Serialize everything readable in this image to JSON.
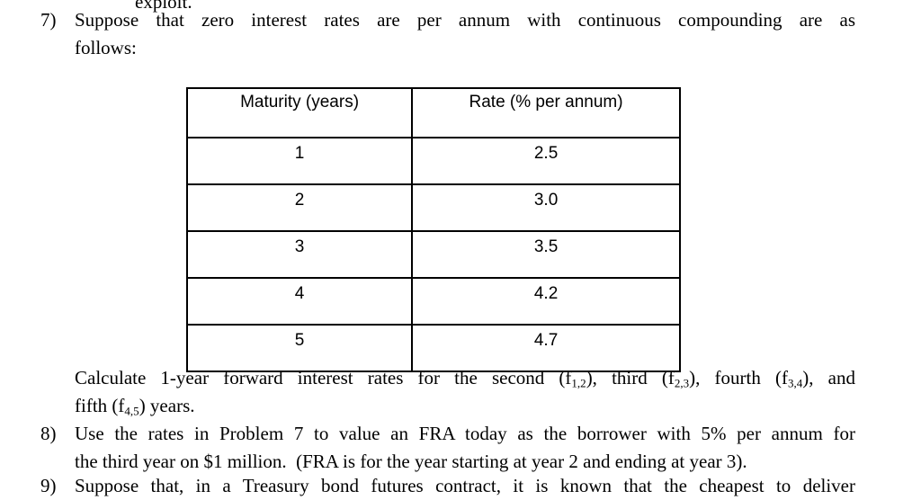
{
  "page": {
    "background": "#ffffff",
    "text_color": "#000000"
  },
  "top_clipped_line": {
    "text": "exploit."
  },
  "problem7": {
    "number": "7)",
    "line1": "Suppose that zero interest rates are per annum with continuous compounding are as",
    "line2": "follows:"
  },
  "rates_table": {
    "headers": [
      "Maturity (years)",
      "Rate (% per annum)"
    ],
    "rows": [
      [
        "1",
        "2.5"
      ],
      [
        "2",
        "3.0"
      ],
      [
        "3",
        "3.5"
      ],
      [
        "4",
        "4.2"
      ],
      [
        "5",
        "4.7"
      ]
    ]
  },
  "calculate_paragraph": {
    "line1_segments": [
      {
        "t": "Calculate 1-year forward interest rates for the second (f"
      },
      {
        "sub": "1,2"
      },
      {
        "t": "), third (f"
      },
      {
        "sub": "2,3"
      },
      {
        "t": "), fourth (f"
      },
      {
        "sub": "3,4"
      },
      {
        "t": "), and"
      }
    ],
    "line2_segments": [
      {
        "t": "fifth (f"
      },
      {
        "sub": "4,5"
      },
      {
        "t": ") years."
      }
    ]
  },
  "problem8": {
    "number": "8)",
    "line1": "Use the rates in Problem 7 to value an FRA today as the borrower with 5% per annum for",
    "line2": "the third year on $1 million.  (FRA is for the year starting at year 2 and ending at year 3)."
  },
  "problem9_clipped": {
    "number": "9)",
    "line1": "Suppose that, in a Treasury bond futures contract, it is known that the cheapest to deliver"
  }
}
